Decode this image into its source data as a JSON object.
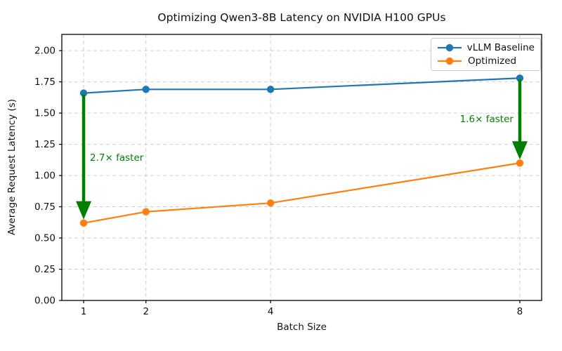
{
  "chart_data": {
    "type": "line",
    "title": "Optimizing Qwen3-8B Latency on NVIDIA H100 GPUs",
    "xlabel": "Batch Size",
    "ylabel": "Average Request Latency (s)",
    "x": [
      1,
      2,
      4,
      8
    ],
    "x_tick_labels": [
      "1",
      "2",
      "4",
      "8"
    ],
    "y_tick_labels": [
      "0.00",
      "0.25",
      "0.50",
      "0.75",
      "1.00",
      "1.25",
      "1.50",
      "1.75",
      "2.00"
    ],
    "xlim": [
      0.65,
      8.35
    ],
    "ylim": [
      0,
      2.13
    ],
    "grid": true,
    "grid_color": "#c9c9c9",
    "legend_position": "upper right",
    "series": [
      {
        "name": "vLLM Baseline",
        "color": "#1f77b4",
        "values": [
          1.66,
          1.69,
          1.69,
          1.78
        ]
      },
      {
        "name": "Optimized",
        "color": "#ff7f0e",
        "values": [
          0.62,
          0.71,
          0.78,
          1.1
        ]
      }
    ],
    "annotations": [
      {
        "label": "2.7× faster",
        "color": "#008000",
        "x": 1,
        "y_from": 1.66,
        "y_to": 0.62,
        "label_y": 1.14,
        "align": "left"
      },
      {
        "label": "1.6× faster",
        "color": "#008000",
        "x": 8,
        "y_from": 1.78,
        "y_to": 1.1,
        "label_y": 1.45,
        "align": "right"
      }
    ]
  }
}
